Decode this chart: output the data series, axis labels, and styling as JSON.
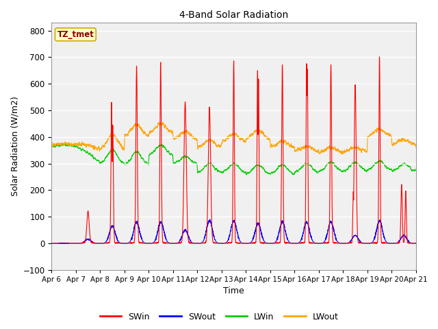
{
  "title": "4-Band Solar Radiation",
  "xlabel": "Time",
  "ylabel": "Solar Radiation (W/m2)",
  "legend_label": "TZ_tmet",
  "series_labels": [
    "SWin",
    "SWout",
    "LWin",
    "LWout"
  ],
  "series_colors": [
    "#ff0000",
    "#0000ff",
    "#00cc00",
    "#ffa500"
  ],
  "ylim": [
    -100,
    830
  ],
  "yticks": [
    -100,
    0,
    100,
    200,
    300,
    400,
    500,
    600,
    700,
    800
  ],
  "fig_bg_color": "#ffffff",
  "plot_bg_color": "#f0f0f0",
  "grid_color": "#ffffff",
  "start_day": 6,
  "n_days": 15,
  "points_per_day": 288,
  "legend_box_color": "#ffffcc",
  "legend_box_edge": "#ccaa00",
  "legend_text_color": "#8B0000"
}
